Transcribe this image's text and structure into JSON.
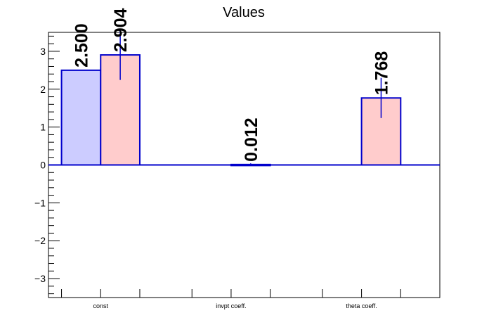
{
  "chart_data": {
    "type": "bar",
    "title": "Values",
    "categories": [
      "const",
      "invpt coeff.",
      "theta coeff."
    ],
    "ylim": [
      -3.5,
      3.5
    ],
    "yticks": [
      -3,
      -2,
      -1,
      0,
      1,
      2,
      3
    ],
    "y_tick_labels": [
      "−3",
      "−2",
      "−1",
      "0",
      "1",
      "2",
      "3"
    ],
    "grid": false,
    "legend": "none",
    "series": [
      {
        "color": "#ccccff",
        "edge_color": "#0000cc",
        "values": [
          2.5,
          null,
          null
        ],
        "labels": [
          "2.500",
          "",
          ""
        ],
        "errors": [
          0,
          0,
          0
        ]
      },
      {
        "color": "#ffcccc",
        "edge_color": "#0000cc",
        "values": [
          2.904,
          0.012,
          1.768
        ],
        "labels": [
          "2.904",
          "0.012",
          "1.768"
        ],
        "errors": [
          0.66,
          0.03,
          0.53
        ]
      }
    ]
  }
}
